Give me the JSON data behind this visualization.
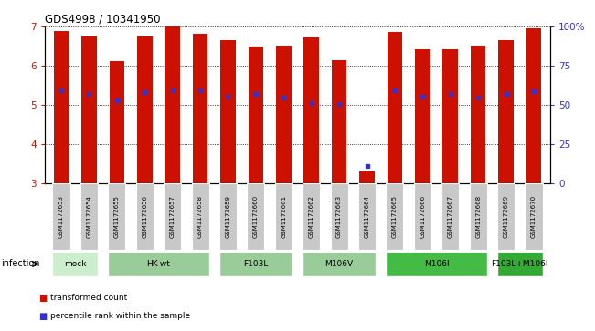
{
  "title": "GDS4998 / 10341950",
  "samples": [
    "GSM1172653",
    "GSM1172654",
    "GSM1172655",
    "GSM1172656",
    "GSM1172657",
    "GSM1172658",
    "GSM1172659",
    "GSM1172660",
    "GSM1172661",
    "GSM1172662",
    "GSM1172663",
    "GSM1172664",
    "GSM1172665",
    "GSM1172666",
    "GSM1172667",
    "GSM1172668",
    "GSM1172669",
    "GSM1172670"
  ],
  "red_bar_top": [
    6.88,
    6.75,
    6.12,
    6.75,
    7.0,
    6.82,
    6.65,
    6.48,
    6.52,
    6.72,
    6.15,
    3.32,
    6.87,
    6.42,
    6.42,
    6.52,
    6.65,
    6.95
  ],
  "blue_marker_pos": [
    5.38,
    5.28,
    5.12,
    5.33,
    5.38,
    5.38,
    5.22,
    5.28,
    5.18,
    5.05,
    5.02,
    3.45,
    5.38,
    5.22,
    5.28,
    5.18,
    5.28,
    5.35
  ],
  "bar_baseline": 3.0,
  "ylim_left": [
    3,
    7
  ],
  "ylim_right": [
    0,
    100
  ],
  "yticks_left": [
    3,
    4,
    5,
    6,
    7
  ],
  "yticks_right": [
    0,
    25,
    50,
    75,
    100
  ],
  "ytick_right_labels": [
    "0",
    "25",
    "50",
    "75",
    "100%"
  ],
  "red_color": "#cc1100",
  "blue_color": "#3333cc",
  "bar_width": 0.55,
  "group_data": [
    {
      "label": "mock",
      "start": 0,
      "end": 1,
      "color": "#cceecc"
    },
    {
      "label": "HK-wt",
      "start": 2,
      "end": 5,
      "color": "#99cc99"
    },
    {
      "label": "F103L",
      "start": 6,
      "end": 8,
      "color": "#99cc99"
    },
    {
      "label": "M106V",
      "start": 9,
      "end": 11,
      "color": "#99cc99"
    },
    {
      "label": "M106I",
      "start": 12,
      "end": 15,
      "color": "#44bb44"
    },
    {
      "label": "F103L+M106I",
      "start": 16,
      "end": 17,
      "color": "#33aa33"
    }
  ],
  "infection_label": "infection",
  "legend_items": [
    {
      "label": "transformed count",
      "color": "#cc1100"
    },
    {
      "label": "percentile rank within the sample",
      "color": "#3333cc"
    }
  ]
}
